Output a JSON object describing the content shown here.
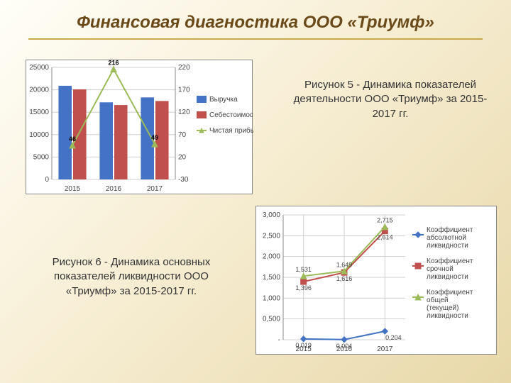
{
  "page": {
    "title": "Финансовая диагностика ООО «Триумф»",
    "title_color": "#6b4a1a",
    "title_fontsize": 24,
    "hr_color": "#c9a94e"
  },
  "caption5": "Рисунок 5 - Динамика показателей деятельности ООО «Триумф» за 2015-2017 гг.",
  "caption6": "Рисунок 6 - Динамика основных показателей ликвидности ООО «Триумф» за 2015-2017 гг.",
  "caption_fontsize": 15,
  "caption_color": "#333333",
  "chart5": {
    "type": "bar+line",
    "categories": [
      "2015",
      "2016",
      "2017"
    ],
    "series": [
      {
        "name": "Выручка",
        "values": [
          20900,
          17200,
          18300
        ],
        "color": "#4472c4",
        "axis": "left"
      },
      {
        "name": "Себестоимость",
        "values": [
          20100,
          16600,
          17500
        ],
        "color": "#c0504d",
        "axis": "left"
      }
    ],
    "line_series": {
      "name": "Чистая прибыль",
      "values": [
        46,
        216,
        49
      ],
      "color": "#9bbb59",
      "axis": "right",
      "marker": "triangle"
    },
    "left_axis": {
      "min": 0,
      "max": 25000,
      "step": 5000,
      "color": "#444444"
    },
    "right_axis": {
      "min": -30,
      "max": 220,
      "step": 50,
      "color": "#444444"
    },
    "grid_color": "#d0d0d0",
    "background_color": "#ffffff",
    "bar_width": 0.32,
    "label_fontsize": 10,
    "legend_fontsize": 10
  },
  "chart6": {
    "type": "line",
    "categories": [
      "2015",
      "2016",
      "2017"
    ],
    "series": [
      {
        "name": "Коэффициент абсолютной ликвидности",
        "values": [
          0.019,
          0.004,
          0.204
        ],
        "color": "#4472c4",
        "marker": "diamond"
      },
      {
        "name": "Коэффициент срочной ликвидности",
        "values": [
          1.396,
          1.616,
          2.614
        ],
        "color": "#c0504d",
        "marker": "square"
      },
      {
        "name": "Коэффициент общей (текущей) ликвидности",
        "values": [
          1.531,
          1.649,
          2.715
        ],
        "color": "#9bbb59",
        "marker": "triangle"
      }
    ],
    "y_axis": {
      "min": 0,
      "max": 3.0,
      "step": 0.5,
      "color": "#444444"
    },
    "grid_color": "#d0d0d0",
    "background_color": "#ffffff",
    "label_fontsize": 10,
    "legend_fontsize": 10,
    "data_labels": {
      "s0": [
        "0,019",
        "0,004",
        "0,204"
      ],
      "s1": [
        "1,396",
        "1,616",
        "2,614"
      ],
      "s2": [
        "1,531",
        "1,649",
        "2,715"
      ]
    },
    "y_tick_labels": [
      "-",
      "0,500",
      "1,000",
      "1,500",
      "2,000",
      "2,500",
      "3,000"
    ]
  }
}
